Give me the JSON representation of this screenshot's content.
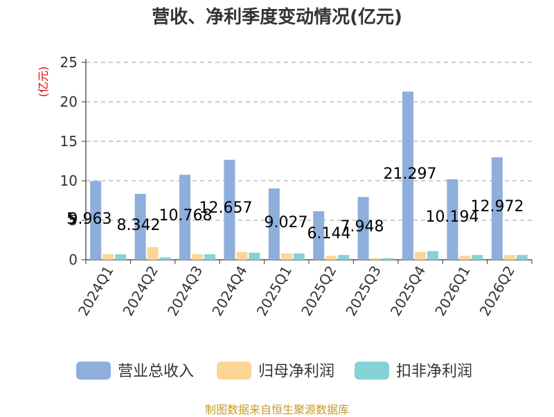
{
  "title": "营收、净利季度变动情况(亿元)",
  "source": "制图数据来自恒生聚源数据库",
  "colors": {
    "revenue": "#8eaedc",
    "net_profit": "#fdd594",
    "deducted_profit": "#86d3d6"
  },
  "chart_data": {
    "type": "bar",
    "title": "营收、净利季度变动情况(亿元)",
    "ylabel": "(亿元)",
    "xlabel": "",
    "ylim": [
      0,
      25
    ],
    "yticks": [
      "0",
      "5",
      "10",
      "15",
      "20",
      "25"
    ],
    "grid": true,
    "legend_position": "bottom",
    "categories": [
      "2024Q1",
      "2024Q2",
      "2024Q3",
      "2024Q4",
      "2025Q1",
      "2025Q2",
      "2025Q3",
      "2025Q4",
      "2026Q1",
      "2026Q2"
    ],
    "series": [
      {
        "name": "营业总收入",
        "values": [
          9.963,
          8.342,
          10.768,
          12.657,
          9.027,
          6.144,
          7.948,
          21.297,
          10.194,
          12.972
        ],
        "labels": [
          "9.963",
          "8.342",
          "10.768",
          "12.657",
          "9.027",
          "6.144",
          "7.948",
          "21.297",
          "10.194",
          "12.972"
        ]
      },
      {
        "name": "归母净利润",
        "values": [
          0.7,
          1.6,
          0.7,
          1.0,
          0.8,
          0.5,
          0.2,
          1.0,
          0.5,
          0.6
        ]
      },
      {
        "name": "扣非净利润",
        "values": [
          0.7,
          0.3,
          0.7,
          0.9,
          0.8,
          0.6,
          0.2,
          1.1,
          0.6,
          0.6
        ]
      }
    ],
    "stray_label": "5"
  }
}
